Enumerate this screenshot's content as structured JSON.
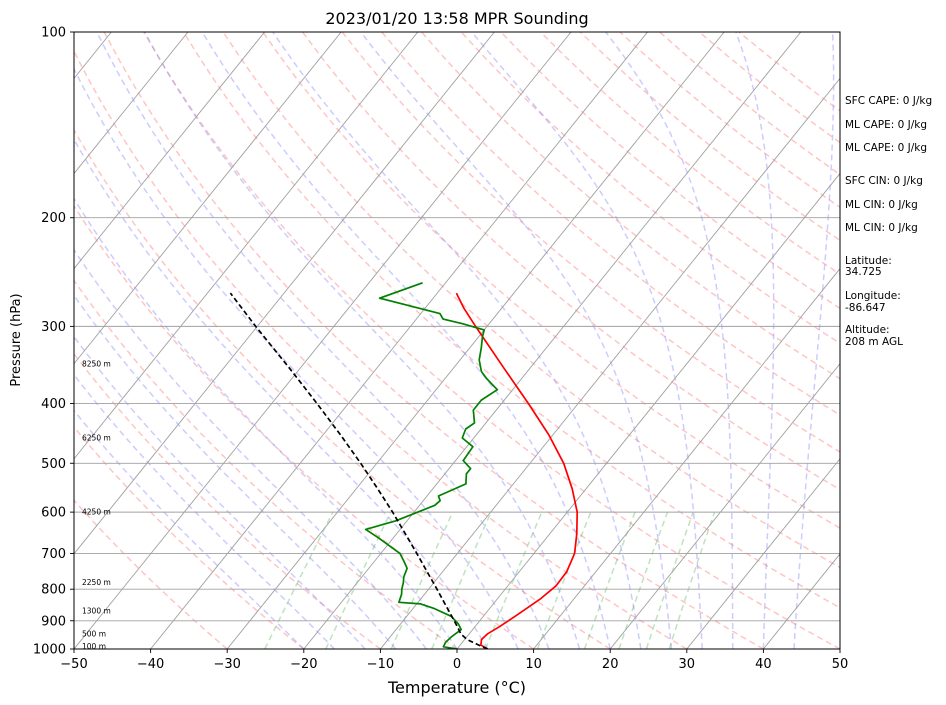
{
  "chart_data": {
    "type": "line",
    "title": "2023/01/20 13:58 MPR Sounding",
    "xlabel": "Temperature (°C)",
    "ylabel": "Pressure (hPa)",
    "xlim": [
      -50,
      50
    ],
    "ylim": [
      1000,
      100
    ],
    "y_scale": "log",
    "grid": true,
    "x_ticks": [
      "−50",
      "−40",
      "−30",
      "−20",
      "−10",
      "0",
      "10",
      "20",
      "30",
      "40",
      "50"
    ],
    "y_ticks": [
      {
        "p": 100,
        "label": "100"
      },
      {
        "p": 200,
        "label": "200"
      },
      {
        "p": 300,
        "label": "300"
      },
      {
        "p": 400,
        "label": "400"
      },
      {
        "p": 500,
        "label": "500"
      },
      {
        "p": 600,
        "label": "600"
      },
      {
        "p": 700,
        "label": "700"
      },
      {
        "p": 800,
        "label": "800"
      },
      {
        "p": 900,
        "label": "900"
      },
      {
        "p": 1000,
        "label": "1000"
      }
    ],
    "height_labels": [
      {
        "p": 990,
        "label": "100 m"
      },
      {
        "p": 945,
        "label": "500 m"
      },
      {
        "p": 868,
        "label": "1300 m"
      },
      {
        "p": 780,
        "label": "2250 m"
      },
      {
        "p": 600,
        "label": "4250 m"
      },
      {
        "p": 455,
        "label": "6250 m"
      },
      {
        "p": 345,
        "label": "8250 m"
      }
    ],
    "side_text": [
      "SFC CAPE: 0 J/kg",
      "ML CAPE: 0 J/kg",
      "ML CAPE: 0 J/kg",
      "SFC CIN: 0 J/kg",
      "ML CIN: 0 J/kg",
      "ML CIN: 0 J/kg",
      "Latitude:",
      "34.725",
      "Longitude:",
      "-86.647",
      "Altitude:",
      "208 m AGL"
    ],
    "series": [
      {
        "color": "#ff0000",
        "points": [
          [
            1000,
            4.0
          ],
          [
            985,
            2.7
          ],
          [
            965,
            2.2
          ],
          [
            945,
            2.4
          ],
          [
            920,
            3.2
          ],
          [
            880,
            4.3
          ],
          [
            830,
            5.6
          ],
          [
            790,
            6.3
          ],
          [
            750,
            6.2
          ],
          [
            700,
            5.3
          ],
          [
            650,
            3.5
          ],
          [
            600,
            1.3
          ],
          [
            550,
            -1.8
          ],
          [
            500,
            -5.6
          ],
          [
            450,
            -10.5
          ],
          [
            400,
            -16.5
          ],
          [
            350,
            -23.5
          ],
          [
            300,
            -31.5
          ],
          [
            280,
            -35.0
          ],
          [
            265,
            -37.5
          ]
        ]
      },
      {
        "color": "#008000",
        "points": [
          [
            1000,
            0.0
          ],
          [
            992,
            -2.0
          ],
          [
            975,
            -2.2
          ],
          [
            955,
            -2.0
          ],
          [
            930,
            -1.5
          ],
          [
            910,
            -2.5
          ],
          [
            885,
            -4.2
          ],
          [
            860,
            -7.2
          ],
          [
            845,
            -9.5
          ],
          [
            840,
            -12.5
          ],
          [
            815,
            -13.0
          ],
          [
            800,
            -13.5
          ],
          [
            780,
            -14.0
          ],
          [
            765,
            -14.5
          ],
          [
            740,
            -15.0
          ],
          [
            720,
            -16.2
          ],
          [
            700,
            -17.5
          ],
          [
            660,
            -22.0
          ],
          [
            640,
            -24.5
          ],
          [
            620,
            -21.5
          ],
          [
            600,
            -19.5
          ],
          [
            585,
            -18.0
          ],
          [
            575,
            -17.8
          ],
          [
            565,
            -18.5
          ],
          [
            540,
            -16.2
          ],
          [
            520,
            -17.2
          ],
          [
            510,
            -17.2
          ],
          [
            495,
            -19.0
          ],
          [
            470,
            -19.2
          ],
          [
            455,
            -21.5
          ],
          [
            440,
            -22.0
          ],
          [
            430,
            -21.5
          ],
          [
            410,
            -23.0
          ],
          [
            395,
            -23.0
          ],
          [
            380,
            -22.0
          ],
          [
            365,
            -24.5
          ],
          [
            355,
            -26.0
          ],
          [
            340,
            -27.5
          ],
          [
            325,
            -28.5
          ],
          [
            312,
            -29.5
          ],
          [
            304,
            -30.0
          ],
          [
            297,
            -33.5
          ],
          [
            292,
            -36.5
          ],
          [
            286,
            -37.5
          ],
          [
            270,
            -47.0
          ],
          [
            255,
            -43.0
          ]
        ]
      },
      {
        "color": "#000000",
        "dashed": true,
        "points": [
          [
            1000,
            4.0
          ],
          [
            985,
            2.4
          ],
          [
            965,
            0.3
          ],
          [
            945,
            -1.1
          ],
          [
            920,
            -2.3
          ],
          [
            880,
            -4.4
          ],
          [
            840,
            -6.6
          ],
          [
            800,
            -8.9
          ],
          [
            750,
            -12.0
          ],
          [
            700,
            -15.3
          ],
          [
            650,
            -18.9
          ],
          [
            600,
            -22.8
          ],
          [
            550,
            -27.2
          ],
          [
            500,
            -32.1
          ],
          [
            450,
            -37.7
          ],
          [
            400,
            -44.1
          ],
          [
            350,
            -51.5
          ],
          [
            300,
            -60.2
          ],
          [
            265,
            -67.0
          ]
        ]
      }
    ]
  }
}
